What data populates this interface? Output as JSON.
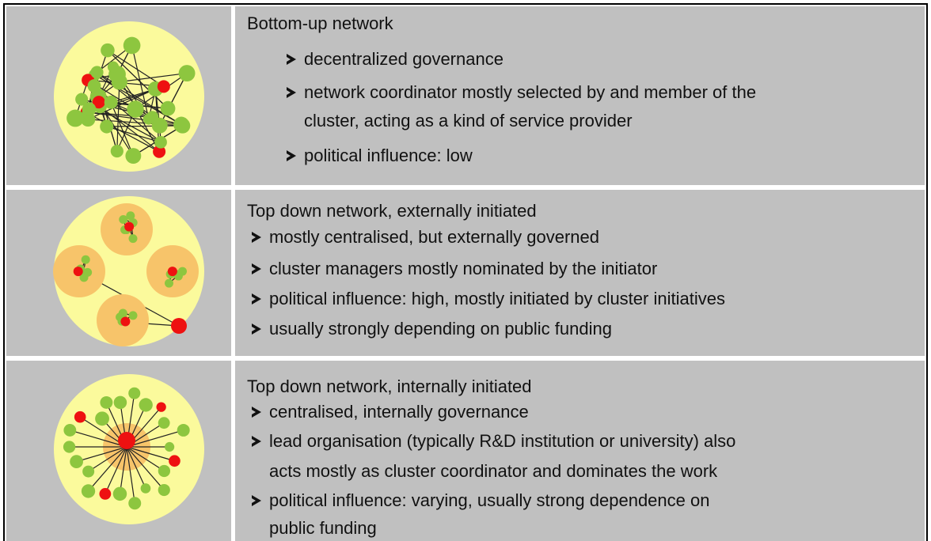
{
  "table": {
    "rows": [
      {
        "title": "Bottom-up network",
        "items": [
          {
            "lines": [
              "decentralized governance"
            ]
          },
          {
            "lines": [
              "network coordinator mostly selected by and member of the",
              "cluster, acting as a kind of service provider"
            ]
          },
          {
            "lines": [
              "political influence: low"
            ]
          }
        ]
      },
      {
        "title": "Top down network, externally initiated",
        "items": [
          {
            "lines": [
              "mostly centralised, but externally governed"
            ]
          },
          {
            "lines": [
              "cluster managers mostly nominated by the initiator"
            ]
          },
          {
            "lines": [
              "political influence: high, mostly initiated by cluster initiatives"
            ]
          },
          {
            "lines": [
              "usually strongly depending on public funding"
            ]
          }
        ]
      },
      {
        "title": "Top down network, internally initiated",
        "items": [
          {
            "lines": [
              "centralised, internally governance"
            ]
          },
          {
            "lines": [
              "lead organisation (typically R&D institution or university) also",
              "acts mostly as cluster coordinator and dominates the work"
            ]
          },
          {
            "lines": [
              "political influence: varying, usually strong dependence on",
              "public funding"
            ]
          }
        ]
      }
    ]
  }
}
